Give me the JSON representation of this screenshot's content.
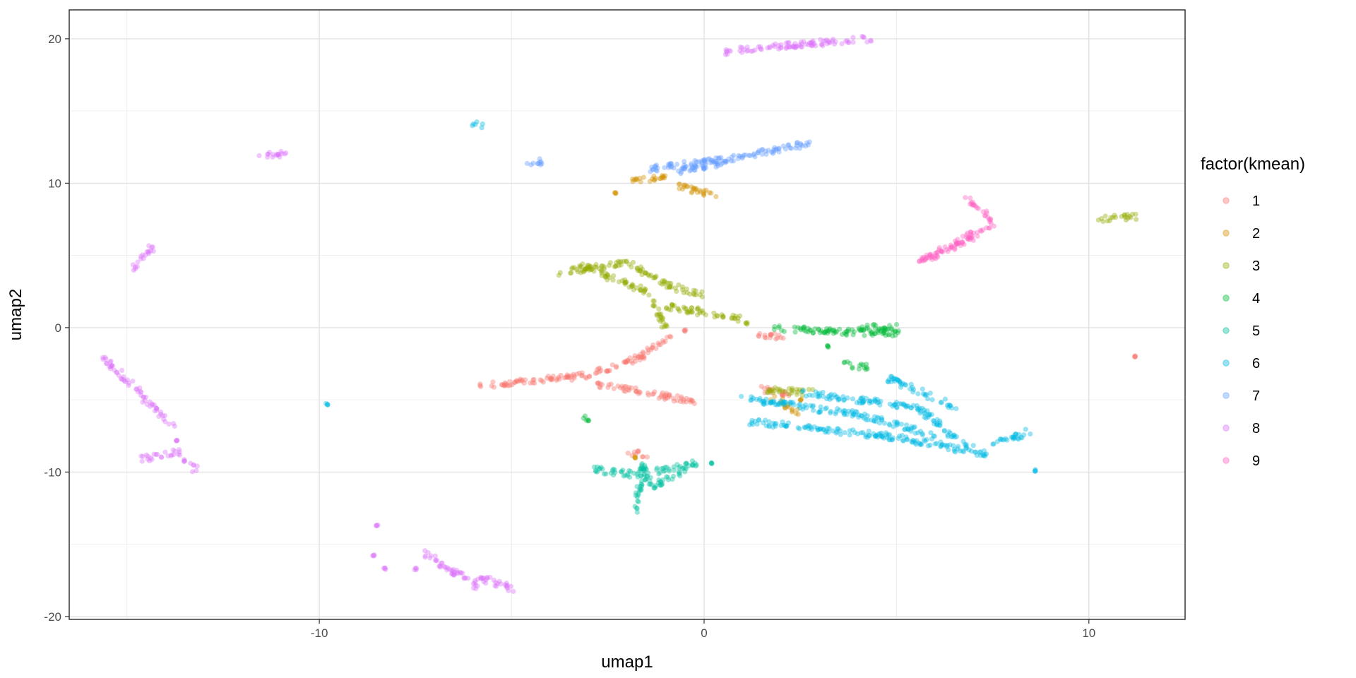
{
  "chart_data": {
    "type": "scatter",
    "title": "",
    "xlabel": "umap1",
    "ylabel": "umap2",
    "xlim": [
      -16.5,
      12.5
    ],
    "ylim": [
      -20.2,
      22
    ],
    "x_ticks": [
      -10,
      0,
      10
    ],
    "y_ticks": [
      -20,
      -10,
      0,
      10,
      20
    ],
    "x_tick_labels": [
      "-10",
      "0",
      "10"
    ],
    "y_tick_labels": [
      "-20",
      "-10",
      "0",
      "10",
      "20"
    ],
    "grid": true,
    "legend": {
      "title": "factor(kmean)",
      "placement": "right",
      "entries": [
        "1",
        "2",
        "3",
        "4",
        "5",
        "6",
        "7",
        "8",
        "9"
      ]
    },
    "point_opacity": 0.4,
    "series": [
      {
        "name": "1",
        "color": "#F8766D",
        "segments": [
          [
            [
              -5.8,
              -4.0
            ],
            [
              -3.0,
              -3.3
            ],
            [
              -1.6,
              -2.0
            ],
            [
              -0.9,
              -0.5
            ]
          ],
          [
            [
              -2.8,
              -3.9
            ],
            [
              -0.5,
              -5.0
            ],
            [
              -0.2,
              -5.2
            ]
          ],
          [
            [
              1.3,
              -0.4
            ],
            [
              2.0,
              -0.6
            ]
          ],
          [
            [
              1.5,
              -4.2
            ],
            [
              2.2,
              -4.6
            ]
          ],
          [
            [
              -1.9,
              -8.7
            ],
            [
              -1.5,
              -8.8
            ]
          ]
        ],
        "points": [
          [
            11.2,
            -2.0
          ],
          [
            -0.5,
            -0.2
          ]
        ]
      },
      {
        "name": "2",
        "color": "#D39200",
        "segments": [
          [
            [
              -1.8,
              10.1
            ],
            [
              -0.9,
              10.5
            ]
          ],
          [
            [
              -0.8,
              9.9
            ],
            [
              0.3,
              9.1
            ]
          ],
          [
            [
              1.8,
              -4.8
            ],
            [
              2.4,
              -5.8
            ]
          ]
        ],
        "points": [
          [
            -2.3,
            9.3
          ],
          [
            2.5,
            -5.0
          ],
          [
            -1.8,
            -9.0
          ]
        ]
      },
      {
        "name": "3",
        "color": "#93AA00",
        "segments": [
          [
            [
              -3.8,
              3.8
            ],
            [
              -2.0,
              4.5
            ],
            [
              -1.0,
              3.0
            ],
            [
              0.0,
              2.2
            ]
          ],
          [
            [
              -3.2,
              4.3
            ],
            [
              -1.5,
              2.5
            ],
            [
              -1.0,
              0.0
            ]
          ],
          [
            [
              -1.0,
              1.5
            ],
            [
              1.0,
              0.6
            ]
          ],
          [
            [
              10.3,
              7.5
            ],
            [
              11.2,
              7.7
            ]
          ],
          [
            [
              1.6,
              -4.3
            ],
            [
              2.8,
              -4.5
            ]
          ]
        ],
        "points": [
          [
            1.1,
            0.3
          ]
        ]
      },
      {
        "name": "4",
        "color": "#00BA38",
        "segments": [
          [
            [
              1.8,
              0.0
            ],
            [
              3.5,
              -0.3
            ],
            [
              5.2,
              -0.4
            ]
          ],
          [
            [
              4.0,
              0.0
            ],
            [
              5.0,
              0.0
            ]
          ],
          [
            [
              3.7,
              -2.5
            ],
            [
              4.3,
              -2.8
            ]
          ],
          [
            [
              -3.1,
              -6.3
            ],
            [
              -2.9,
              -6.1
            ]
          ]
        ],
        "points": [
          [
            3.2,
            -1.3
          ]
        ]
      },
      {
        "name": "5",
        "color": "#00C19F",
        "segments": [
          [
            [
              -2.9,
              -9.8
            ],
            [
              -1.8,
              -10.2
            ],
            [
              -0.2,
              -9.4
            ]
          ],
          [
            [
              -1.8,
              -12.7
            ],
            [
              -1.6,
              -9.5
            ],
            [
              -1.4,
              -11.0
            ],
            [
              -0.5,
              -9.9
            ]
          ]
        ],
        "points": [
          [
            0.2,
            -9.4
          ]
        ]
      },
      {
        "name": "6",
        "color": "#00B9E3",
        "segments": [
          [
            [
              1.2,
              -6.5
            ],
            [
              5.0,
              -7.6
            ],
            [
              7.4,
              -8.8
            ]
          ],
          [
            [
              1.0,
              -4.9
            ],
            [
              4.0,
              -6.0
            ],
            [
              6.0,
              -7.5
            ]
          ],
          [
            [
              2.5,
              -4.5
            ],
            [
              5.5,
              -5.5
            ],
            [
              7.0,
              -8.5
            ]
          ],
          [
            [
              4.8,
              -3.5
            ],
            [
              6.5,
              -5.5
            ]
          ],
          [
            [
              7.5,
              -8.0
            ],
            [
              8.5,
              -7.2
            ]
          ],
          [
            [
              -6.0,
              14.1
            ],
            [
              -5.8,
              14.0
            ]
          ]
        ],
        "points": [
          [
            -9.8,
            -5.3
          ],
          [
            8.6,
            -9.9
          ],
          [
            3.0,
            -5.8
          ]
        ]
      },
      {
        "name": "7",
        "color": "#619CFF",
        "segments": [
          [
            [
              -1.4,
              11.0
            ],
            [
              1.0,
              11.8
            ],
            [
              2.8,
              12.8
            ]
          ],
          [
            [
              -0.7,
              10.8
            ],
            [
              0.6,
              11.5
            ]
          ],
          [
            [
              -4.6,
              11.3
            ],
            [
              -4.2,
              11.5
            ]
          ]
        ],
        "points": [
          [
            0.0,
            11.0
          ]
        ]
      },
      {
        "name": "8",
        "color": "#DB72FB",
        "segments": [
          [
            [
              0.5,
              19.1
            ],
            [
              2.5,
              19.6
            ],
            [
              4.3,
              20.0
            ]
          ],
          [
            [
              -11.5,
              12.0
            ],
            [
              -10.8,
              12.0
            ]
          ],
          [
            [
              -14.9,
              4.1
            ],
            [
              -14.3,
              5.6
            ]
          ],
          [
            [
              -15.6,
              -2.1
            ],
            [
              -13.8,
              -6.8
            ]
          ],
          [
            [
              -14.6,
              -9.1
            ],
            [
              -13.6,
              -8.6
            ]
          ],
          [
            [
              -13.3,
              -9.3
            ],
            [
              -13.2,
              -9.9
            ]
          ],
          [
            [
              -7.3,
              -15.5
            ],
            [
              -6.5,
              -17.0
            ],
            [
              -5.6,
              -17.5
            ],
            [
              -5.0,
              -18.1
            ]
          ],
          [
            [
              -6.0,
              -18.0
            ],
            [
              -5.7,
              -17.2
            ]
          ]
        ],
        "points": [
          [
            -8.5,
            -13.7
          ],
          [
            -8.6,
            -15.8
          ],
          [
            -8.3,
            -16.7
          ],
          [
            -7.5,
            -16.7
          ],
          [
            -13.7,
            -7.8
          ],
          [
            -13.5,
            -9.2
          ]
        ]
      },
      {
        "name": "9",
        "color": "#FF61C3",
        "segments": [
          [
            [
              5.6,
              4.6
            ],
            [
              6.5,
              5.5
            ],
            [
              7.4,
              7.0
            ]
          ],
          [
            [
              5.8,
              4.8
            ],
            [
              7.0,
              6.5
            ]
          ],
          [
            [
              6.8,
              8.9
            ],
            [
              7.2,
              8.2
            ],
            [
              7.5,
              7.2
            ]
          ]
        ],
        "points": []
      }
    ]
  }
}
